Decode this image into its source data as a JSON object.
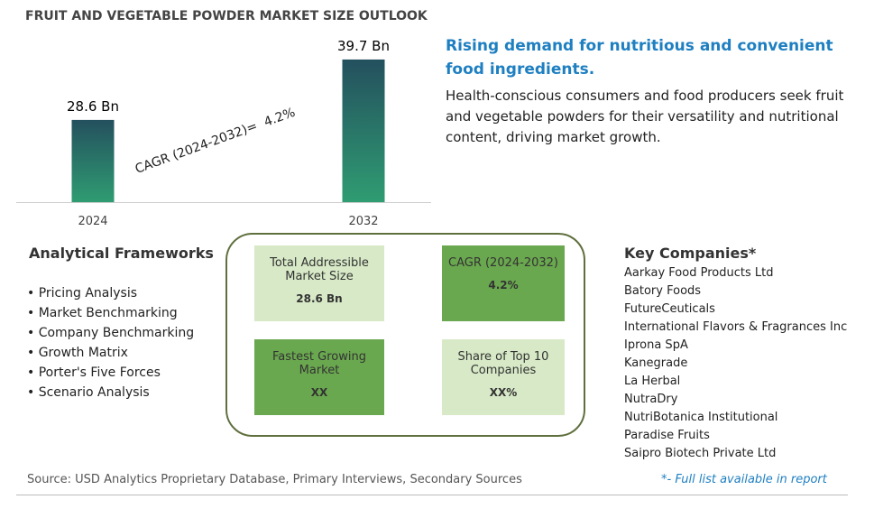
{
  "chart_data": {
    "type": "bar",
    "title": "FRUIT AND VEGETABLE POWDER MARKET SIZE OUTLOOK",
    "categories": [
      "2024",
      "2032"
    ],
    "values": [
      28.6,
      39.7
    ],
    "value_labels": [
      "28.6 Bn",
      "39.7 Bn"
    ],
    "gradient": [
      "#24505e",
      "#2f9c72"
    ],
    "ylim": [
      13.5,
      44
    ],
    "annotation": "CAGR (2024-2032)=  4.2%"
  },
  "headline": "Rising demand for nutritious and convenient food ingredients.",
  "description": "Health-conscious consumers and food producers seek fruit and vegetable powders for their versatility and nutritional content, driving market growth.",
  "frameworks": {
    "title": "Analytical Frameworks",
    "items": [
      "Pricing Analysis",
      "Market Benchmarking",
      "Company Benchmarking",
      "Growth Matrix",
      "Porter's Five Forces",
      "Scenario Analysis"
    ]
  },
  "boxes": [
    {
      "label": "Total Addressible Market Size",
      "value": "28.6 Bn"
    },
    {
      "label": "CAGR (2024-2032)",
      "value": "4.2%"
    },
    {
      "label": "Fastest Growing Market",
      "value": "XX"
    },
    {
      "label": "Share of Top 10 Companies",
      "value": "XX%"
    }
  ],
  "companies": {
    "title": "Key Companies*",
    "items": [
      "Aarkay Food Products Ltd",
      "Batory Foods",
      "FutureCeuticals",
      "International Flavors & Fragrances Inc",
      "Iprona SpA",
      "Kanegrade",
      "La Herbal",
      "NutraDry",
      "NutriBotanica Institutional",
      "Paradise Fruits",
      "Saipro Biotech Private Ltd"
    ],
    "note": "*- Full list available in report"
  },
  "source": "Source: USD Analytics Proprietary Database, Primary Interviews, Secondary Sources"
}
